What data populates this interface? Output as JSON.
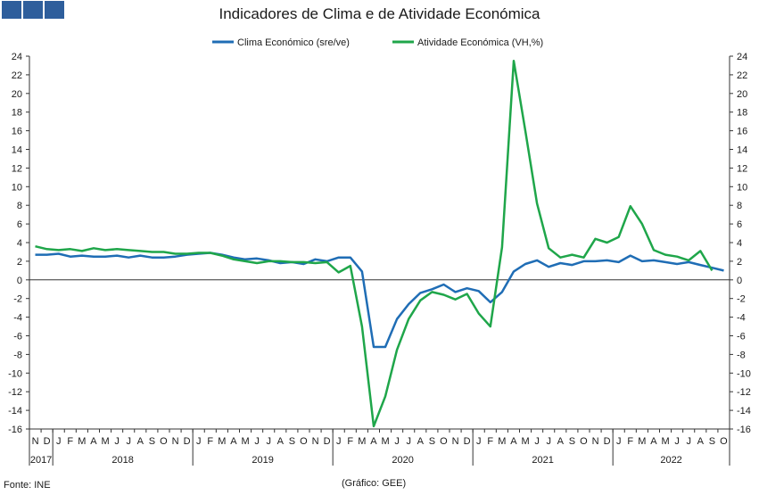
{
  "logo": {
    "name": "gee-logo"
  },
  "title": "Indicadores de Clima e de Atividade Económica",
  "source": "Fonte: INE",
  "credit": "(Gráfico: GEE)",
  "colors": {
    "clima": "#1f6db5",
    "atividade": "#1fa64a"
  },
  "chart_data": {
    "type": "line",
    "title": "Indicadores de Clima e de Atividade Económica",
    "ylim": [
      -16,
      24
    ],
    "yticks": [
      -16,
      -14,
      -12,
      -10,
      -8,
      -6,
      -4,
      -2,
      0,
      2,
      4,
      6,
      8,
      10,
      12,
      14,
      16,
      18,
      20,
      22,
      24
    ],
    "grid": false,
    "legend": "top-center",
    "month_labels": [
      "N",
      "D",
      "J",
      "F",
      "M",
      "A",
      "M",
      "J",
      "J",
      "A",
      "S",
      "O",
      "N",
      "D",
      "J",
      "F",
      "M",
      "A",
      "M",
      "J",
      "J",
      "A",
      "S",
      "O",
      "N",
      "D",
      "J",
      "F",
      "M",
      "A",
      "M",
      "J",
      "J",
      "A",
      "S",
      "O",
      "N",
      "D",
      "J",
      "F",
      "M",
      "A",
      "M",
      "J",
      "J",
      "A",
      "S",
      "O",
      "N",
      "D",
      "J",
      "F",
      "M",
      "A",
      "M",
      "J",
      "J",
      "A",
      "S",
      "O"
    ],
    "years": [
      {
        "label": "2017",
        "start": 0,
        "end": 2
      },
      {
        "label": "2018",
        "start": 2,
        "end": 14
      },
      {
        "label": "2019",
        "start": 14,
        "end": 26
      },
      {
        "label": "2020",
        "start": 26,
        "end": 38
      },
      {
        "label": "2021",
        "start": 38,
        "end": 50
      },
      {
        "label": "2022",
        "start": 50,
        "end": 60
      }
    ],
    "series": [
      {
        "name": "Clima Económico (sre/ve)",
        "values": [
          2.7,
          2.7,
          2.8,
          2.5,
          2.6,
          2.5,
          2.5,
          2.6,
          2.4,
          2.6,
          2.4,
          2.4,
          2.5,
          2.7,
          2.8,
          2.9,
          2.7,
          2.4,
          2.2,
          2.3,
          2.1,
          1.8,
          1.9,
          1.7,
          2.2,
          2.0,
          2.4,
          2.4,
          0.9,
          -7.2,
          -7.2,
          -4.2,
          -2.6,
          -1.4,
          -1.0,
          -0.5,
          -1.3,
          -0.9,
          -1.2,
          -2.4,
          -1.3,
          0.9,
          1.7,
          2.1,
          1.4,
          1.8,
          1.6,
          2.0,
          2.0,
          2.1,
          1.9,
          2.6,
          2.0,
          2.1,
          1.9,
          1.7,
          1.9,
          1.6,
          1.3,
          1.0
        ]
      },
      {
        "name": "Atividade Económica (VH,%)",
        "values": [
          3.6,
          3.3,
          3.2,
          3.3,
          3.1,
          3.4,
          3.2,
          3.3,
          3.2,
          3.1,
          3.0,
          3.0,
          2.8,
          2.8,
          2.9,
          2.9,
          2.6,
          2.2,
          2.0,
          1.8,
          2.0,
          2.0,
          1.9,
          1.9,
          1.8,
          1.9,
          0.8,
          1.5,
          -5.0,
          -15.7,
          -12.5,
          -7.5,
          -4.2,
          -2.2,
          -1.3,
          -1.6,
          -2.1,
          -1.5,
          -3.6,
          -5.0,
          3.5,
          23.5,
          16.0,
          8.2,
          3.4,
          2.4,
          2.7,
          2.4,
          4.4,
          4.0,
          4.6,
          7.9,
          6.0,
          3.2,
          2.7,
          2.5,
          2.1,
          3.1,
          1.0,
          null
        ]
      }
    ]
  }
}
